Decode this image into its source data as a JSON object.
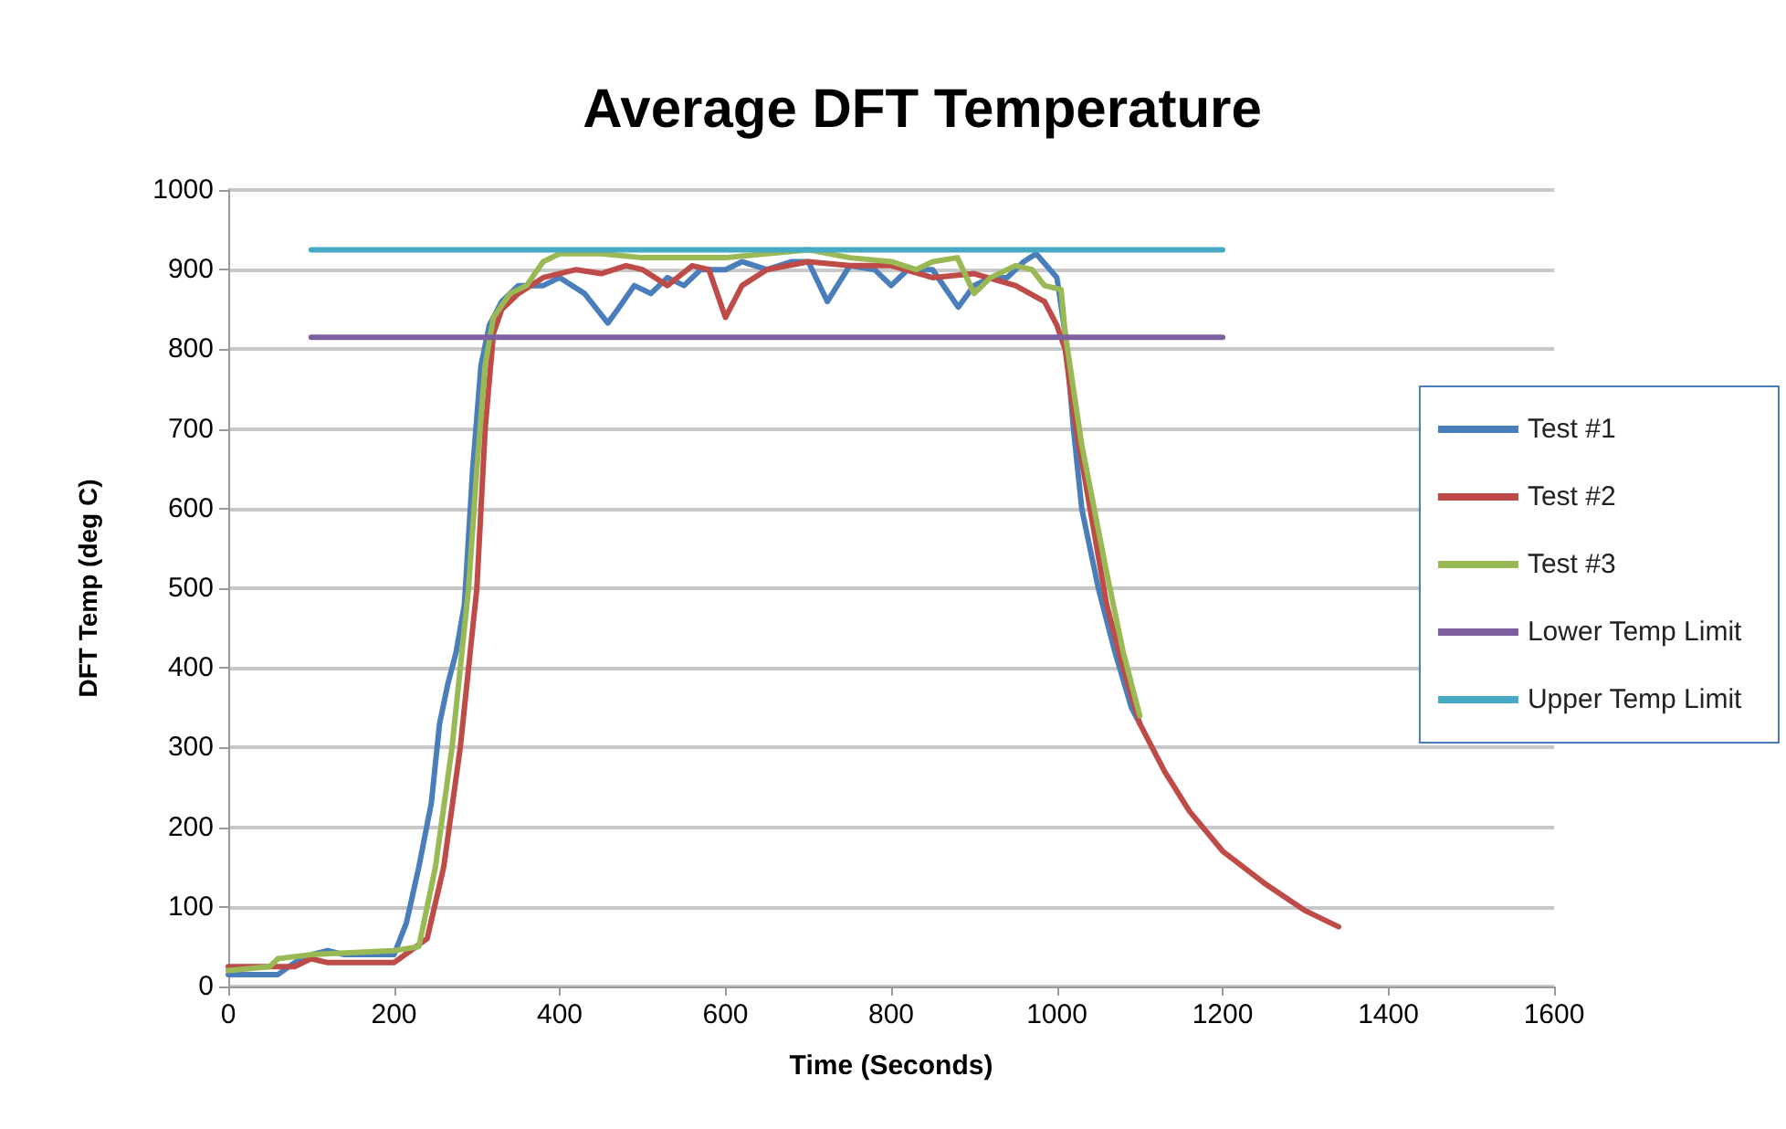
{
  "chart_data": {
    "type": "line",
    "title": "Average DFT Temperature",
    "xlabel": "Time (Seconds)",
    "ylabel": "DFT Temp (deg C)",
    "xlim": [
      0,
      1600
    ],
    "xticks": [
      0,
      200,
      400,
      600,
      800,
      1000,
      1200,
      1400,
      1600
    ],
    "ylim": [
      0,
      1000
    ],
    "yticks": [
      0,
      100,
      200,
      300,
      400,
      500,
      600,
      700,
      800,
      900,
      1000
    ],
    "grid": "y",
    "legend": "right",
    "marker": "none",
    "line_style": "solid",
    "series": [
      {
        "name": "Test #1",
        "color": "#4a7ebb",
        "x": [
          0,
          60,
          80,
          100,
          120,
          140,
          200,
          215,
          230,
          245,
          255,
          265,
          275,
          285,
          295,
          305,
          315,
          330,
          350,
          380,
          400,
          430,
          458,
          470,
          490,
          510,
          530,
          550,
          570,
          600,
          620,
          650,
          680,
          700,
          723,
          750,
          780,
          800,
          820,
          850,
          881,
          900,
          920,
          940,
          960,
          975,
          1000,
          1010,
          1020,
          1030,
          1050,
          1070,
          1090,
          1100
        ],
        "values": [
          15,
          15,
          30,
          40,
          45,
          40,
          40,
          80,
          150,
          230,
          330,
          380,
          420,
          480,
          650,
          780,
          830,
          860,
          880,
          880,
          890,
          870,
          833,
          850,
          880,
          870,
          890,
          880,
          900,
          900,
          910,
          900,
          910,
          910,
          860,
          905,
          900,
          880,
          900,
          900,
          853,
          880,
          890,
          890,
          910,
          920,
          890,
          820,
          700,
          600,
          500,
          420,
          350,
          330
        ]
      },
      {
        "name": "Test #2",
        "color": "#be4b48",
        "x": [
          0,
          80,
          100,
          120,
          200,
          220,
          240,
          260,
          280,
          300,
          310,
          320,
          330,
          350,
          380,
          420,
          450,
          480,
          500,
          530,
          560,
          580,
          600,
          620,
          650,
          700,
          750,
          800,
          850,
          900,
          950,
          985,
          1000,
          1010,
          1020,
          1040,
          1060,
          1080,
          1100,
          1130,
          1160,
          1200,
          1250,
          1300,
          1340
        ],
        "values": [
          25,
          25,
          35,
          30,
          30,
          45,
          60,
          150,
          300,
          500,
          700,
          820,
          850,
          870,
          890,
          900,
          895,
          905,
          900,
          880,
          905,
          900,
          840,
          880,
          900,
          910,
          905,
          905,
          890,
          895,
          880,
          860,
          830,
          800,
          720,
          600,
          480,
          400,
          330,
          270,
          220,
          170,
          130,
          95,
          75
        ]
      },
      {
        "name": "Test #3",
        "color": "#98b954",
        "x": [
          0,
          50,
          60,
          100,
          200,
          230,
          250,
          270,
          290,
          300,
          310,
          320,
          340,
          360,
          380,
          400,
          450,
          500,
          550,
          600,
          650,
          700,
          750,
          800,
          830,
          850,
          880,
          900,
          920,
          950,
          970,
          985,
          1005,
          1010,
          1030,
          1060,
          1080,
          1100
        ],
        "values": [
          20,
          25,
          35,
          40,
          45,
          50,
          150,
          300,
          500,
          650,
          780,
          840,
          870,
          880,
          910,
          920,
          920,
          915,
          915,
          915,
          920,
          925,
          915,
          910,
          900,
          910,
          915,
          870,
          890,
          905,
          900,
          880,
          875,
          820,
          680,
          520,
          420,
          340
        ]
      },
      {
        "name": "Lower Temp Limit",
        "color": "#7d60a0",
        "x": [
          100,
          1200
        ],
        "values": [
          815,
          815
        ]
      },
      {
        "name": "Upper Temp Limit",
        "color": "#46aac5",
        "x": [
          100,
          1200
        ],
        "values": [
          925,
          925
        ]
      }
    ]
  }
}
